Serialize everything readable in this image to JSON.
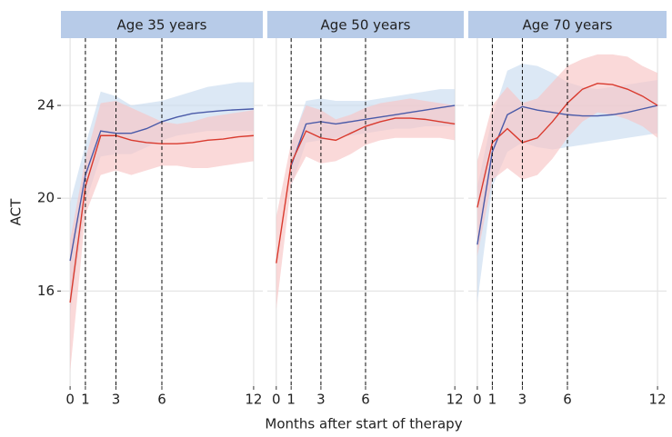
{
  "chart_data": [
    {
      "type": "line",
      "title": "Age 35 years",
      "ylabel": "ACT",
      "x": [
        0,
        1,
        2,
        3,
        4,
        5,
        6,
        7,
        8,
        9,
        10,
        11,
        12
      ],
      "xlim": [
        -0.6,
        12.6
      ],
      "xticks": [
        0,
        1,
        3,
        6,
        12
      ],
      "vlines": [
        1,
        3,
        6
      ],
      "ylim": [
        11.9,
        26.9
      ],
      "yticks": [
        16,
        20,
        24
      ],
      "grid": true,
      "series": [
        {
          "color": "#4a5aa8",
          "band_color": "#c9dcef",
          "values": [
            17.3,
            21.0,
            22.9,
            22.8,
            22.8,
            23.0,
            23.3,
            23.5,
            23.65,
            23.72,
            23.78,
            23.82,
            23.85
          ],
          "lower": [
            15.0,
            19.8,
            21.8,
            21.9,
            21.9,
            22.2,
            22.5,
            22.7,
            22.8,
            22.9,
            22.9,
            22.9,
            22.9
          ],
          "upper": [
            19.8,
            22.3,
            24.6,
            24.4,
            24.0,
            24.1,
            24.2,
            24.4,
            24.6,
            24.8,
            24.9,
            25.0,
            25.0
          ]
        },
        {
          "color": "#d93a2e",
          "band_color": "#f7c4c4",
          "values": [
            15.5,
            20.5,
            22.7,
            22.7,
            22.5,
            22.4,
            22.35,
            22.35,
            22.4,
            22.5,
            22.55,
            22.65,
            22.7
          ],
          "lower": [
            12.5,
            19.3,
            21.0,
            21.2,
            21.0,
            21.2,
            21.4,
            21.4,
            21.3,
            21.3,
            21.4,
            21.5,
            21.6
          ],
          "upper": [
            18.2,
            21.7,
            24.1,
            24.2,
            23.9,
            23.6,
            23.3,
            23.2,
            23.3,
            23.5,
            23.6,
            23.7,
            23.8
          ]
        }
      ]
    },
    {
      "type": "line",
      "title": "Age 50 years",
      "xlabel": "Months after start of therapy",
      "x": [
        0,
        1,
        2,
        3,
        4,
        5,
        6,
        7,
        8,
        9,
        10,
        11,
        12
      ],
      "xlim": [
        -0.6,
        12.6
      ],
      "xticks": [
        0,
        1,
        3,
        6,
        12
      ],
      "vlines": [
        1,
        3,
        6
      ],
      "ylim": [
        11.9,
        26.9
      ],
      "yticks": [
        16,
        20,
        24
      ],
      "grid": true,
      "series": [
        {
          "color": "#4a5aa8",
          "band_color": "#c9dcef",
          "values": [
            null,
            21.4,
            23.2,
            23.3,
            23.2,
            23.3,
            23.4,
            23.5,
            23.6,
            23.7,
            23.8,
            23.9,
            24.0
          ],
          "lower": [
            null,
            20.5,
            22.4,
            22.5,
            22.6,
            22.7,
            22.8,
            22.9,
            23.0,
            23.0,
            23.1,
            23.1,
            23.1
          ],
          "upper": [
            null,
            22.3,
            24.2,
            24.3,
            24.2,
            24.2,
            24.2,
            24.3,
            24.4,
            24.5,
            24.6,
            24.7,
            24.7
          ]
        },
        {
          "color": "#d93a2e",
          "band_color": "#f7c4c4",
          "values": [
            17.2,
            21.5,
            22.9,
            22.6,
            22.5,
            22.8,
            23.1,
            23.3,
            23.45,
            23.45,
            23.4,
            23.3,
            23.2
          ],
          "lower": [
            15.2,
            20.6,
            21.8,
            21.5,
            21.6,
            21.9,
            22.3,
            22.5,
            22.6,
            22.6,
            22.6,
            22.6,
            22.5
          ],
          "upper": [
            19.2,
            22.4,
            24.0,
            23.8,
            23.4,
            23.6,
            23.9,
            24.1,
            24.2,
            24.3,
            24.2,
            24.1,
            24.0
          ]
        }
      ]
    },
    {
      "type": "line",
      "title": "Age 70 years",
      "x": [
        0,
        1,
        2,
        3,
        4,
        5,
        6,
        7,
        8,
        9,
        10,
        11,
        12
      ],
      "xlim": [
        -0.6,
        12.6
      ],
      "xticks": [
        0,
        1,
        3,
        6,
        12
      ],
      "vlines": [
        1,
        3,
        6
      ],
      "ylim": [
        11.9,
        26.9
      ],
      "yticks": [
        16,
        20,
        24
      ],
      "grid": true,
      "series": [
        {
          "color": "#4a5aa8",
          "band_color": "#c9dcef",
          "values": [
            18.0,
            22.0,
            23.6,
            23.95,
            23.8,
            23.7,
            23.6,
            23.55,
            23.55,
            23.6,
            23.7,
            23.85,
            24.0
          ],
          "lower": [
            15.5,
            20.5,
            22.0,
            22.4,
            22.2,
            22.1,
            22.2,
            22.3,
            22.4,
            22.5,
            22.6,
            22.7,
            22.8
          ],
          "upper": [
            20.5,
            23.5,
            25.5,
            25.8,
            25.7,
            25.4,
            25.0,
            24.8,
            24.7,
            24.8,
            24.9,
            25.0,
            25.1
          ]
        },
        {
          "color": "#d93a2e",
          "band_color": "#f7c4c4",
          "values": [
            19.6,
            22.4,
            23.0,
            22.4,
            22.6,
            23.3,
            24.1,
            24.7,
            24.95,
            24.9,
            24.7,
            24.4,
            24.0
          ],
          "lower": [
            17.5,
            20.8,
            21.3,
            20.8,
            21.0,
            21.7,
            22.6,
            23.3,
            23.7,
            23.6,
            23.4,
            23.1,
            22.6
          ],
          "upper": [
            21.6,
            24.0,
            24.8,
            24.1,
            24.3,
            25.0,
            25.7,
            26.0,
            26.2,
            26.2,
            26.1,
            25.7,
            25.4
          ]
        }
      ]
    }
  ]
}
